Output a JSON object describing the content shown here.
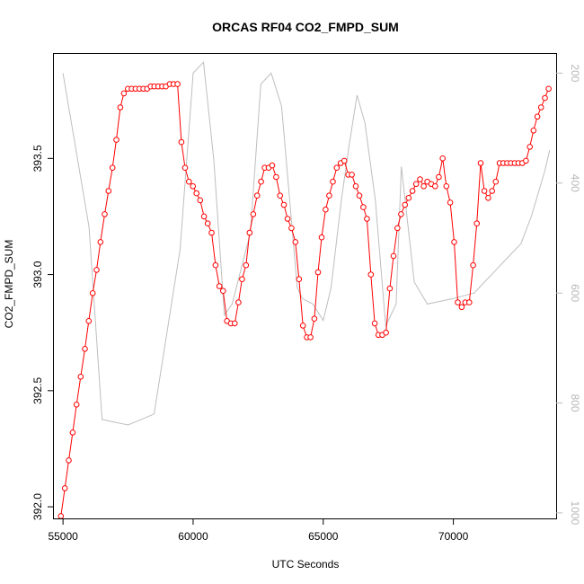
{
  "chart_data": {
    "type": "line",
    "title": "ORCAS RF04 CO2_FMPD_SUM",
    "xlabel": "UTC Seconds",
    "ylabel": "CO2_FMPD_SUM",
    "xlim": [
      54650,
      73950
    ],
    "ylim": [
      391.95,
      393.95
    ],
    "y2lim": [
      1010,
      165
    ],
    "x_ticks": [
      "55000",
      "60000",
      "65000",
      "70000"
    ],
    "x_tick_values": [
      55000,
      60000,
      65000,
      70000
    ],
    "y_ticks": [
      "392.0",
      "392.5",
      "393.0",
      "393.5"
    ],
    "y_tick_values": [
      392.0,
      392.5,
      393.0,
      393.5
    ],
    "y2_ticks": [
      "200",
      "400",
      "600",
      "800",
      "1000"
    ],
    "y2_tick_values": [
      200,
      400,
      600,
      800,
      1000
    ],
    "grid": false,
    "legend": "none",
    "series": [
      {
        "color": "#ff0000",
        "marker": "open-circle",
        "x": [
          54920,
          55070,
          55220,
          55370,
          55520,
          55680,
          55840,
          55990,
          56140,
          56290,
          56440,
          56600,
          56750,
          56900,
          57050,
          57200,
          57340,
          57490,
          57640,
          57790,
          57940,
          58090,
          58230,
          58370,
          58510,
          58660,
          58810,
          58950,
          59100,
          59250,
          59400,
          59550,
          59690,
          59840,
          59990,
          60130,
          60270,
          60420,
          60560,
          60710,
          60860,
          61010,
          61150,
          61300,
          61450,
          61600,
          61740,
          61880,
          62030,
          62170,
          62310,
          62460,
          62610,
          62750,
          62900,
          63040,
          63190,
          63340,
          63490,
          63630,
          63780,
          63930,
          64070,
          64220,
          64370,
          64510,
          64660,
          64800,
          64940,
          65090,
          65230,
          65370,
          65520,
          65670,
          65810,
          65960,
          66100,
          66250,
          66390,
          66540,
          66680,
          66830,
          66980,
          67120,
          67270,
          67410,
          67560,
          67700,
          67850,
          67990,
          68140,
          68280,
          68430,
          68570,
          68720,
          68860,
          69000,
          69150,
          69300,
          69440,
          69590,
          69730,
          69880,
          70030,
          70170,
          70320,
          70460,
          70610,
          70760,
          70900,
          71050,
          71190,
          71340,
          71490,
          71630,
          71780,
          71920,
          72070,
          72210,
          72360,
          72500,
          72650,
          72790,
          72940,
          73080,
          73230,
          73370,
          73520,
          73660
        ],
        "y": [
          391.96,
          392.08,
          392.2,
          392.32,
          392.44,
          392.56,
          392.68,
          392.8,
          392.92,
          393.02,
          393.14,
          393.26,
          393.36,
          393.46,
          393.58,
          393.72,
          393.78,
          393.8,
          393.8,
          393.8,
          393.8,
          393.8,
          393.8,
          393.81,
          393.81,
          393.81,
          393.81,
          393.81,
          393.82,
          393.82,
          393.82,
          393.57,
          393.46,
          393.4,
          393.38,
          393.35,
          393.32,
          393.25,
          393.22,
          393.18,
          393.04,
          392.95,
          392.93,
          392.8,
          392.79,
          392.79,
          392.88,
          392.98,
          393.04,
          393.18,
          393.26,
          393.34,
          393.4,
          393.46,
          393.46,
          393.47,
          393.42,
          393.34,
          393.3,
          393.24,
          393.2,
          393.14,
          392.98,
          392.78,
          392.73,
          392.73,
          392.81,
          393.01,
          393.16,
          393.28,
          393.34,
          393.4,
          393.46,
          393.48,
          393.49,
          393.43,
          393.43,
          393.38,
          393.34,
          393.29,
          393.24,
          393.0,
          392.79,
          392.74,
          392.74,
          392.75,
          392.94,
          393.08,
          393.2,
          393.26,
          393.3,
          393.33,
          393.36,
          393.39,
          393.41,
          393.38,
          393.4,
          393.39,
          393.38,
          393.42,
          393.5,
          393.38,
          393.31,
          393.14,
          392.88,
          392.86,
          392.88,
          392.88,
          393.04,
          393.22,
          393.48,
          393.36,
          393.33,
          393.36,
          393.4,
          393.48,
          393.48,
          393.48,
          393.48,
          393.48,
          393.48,
          393.48,
          393.49,
          393.55,
          393.62,
          393.68,
          393.72,
          393.76,
          393.8
        ]
      },
      {
        "color": "#bebebe",
        "marker": "none",
        "x": [
          55000,
          56000,
          56500,
          57500,
          58000,
          58500,
          59500,
          60000,
          60400,
          60800,
          61200,
          61500,
          62200,
          62600,
          63000,
          63400,
          64000,
          64200,
          64600,
          65000,
          65300,
          65700,
          66000,
          66300,
          66600,
          67000,
          67400,
          67800,
          68000,
          68500,
          69000,
          70000,
          70800,
          71200,
          71600,
          72000,
          72600,
          73000,
          73500,
          73700
        ],
        "y": [
          200,
          480,
          830,
          840,
          830,
          820,
          520,
          200,
          180,
          360,
          640,
          620,
          490,
          220,
          200,
          260,
          590,
          610,
          620,
          650,
          590,
          430,
          330,
          240,
          290,
          430,
          660,
          620,
          370,
          580,
          620,
          610,
          600,
          580,
          560,
          540,
          510,
          460,
          380,
          340
        ]
      }
    ]
  }
}
